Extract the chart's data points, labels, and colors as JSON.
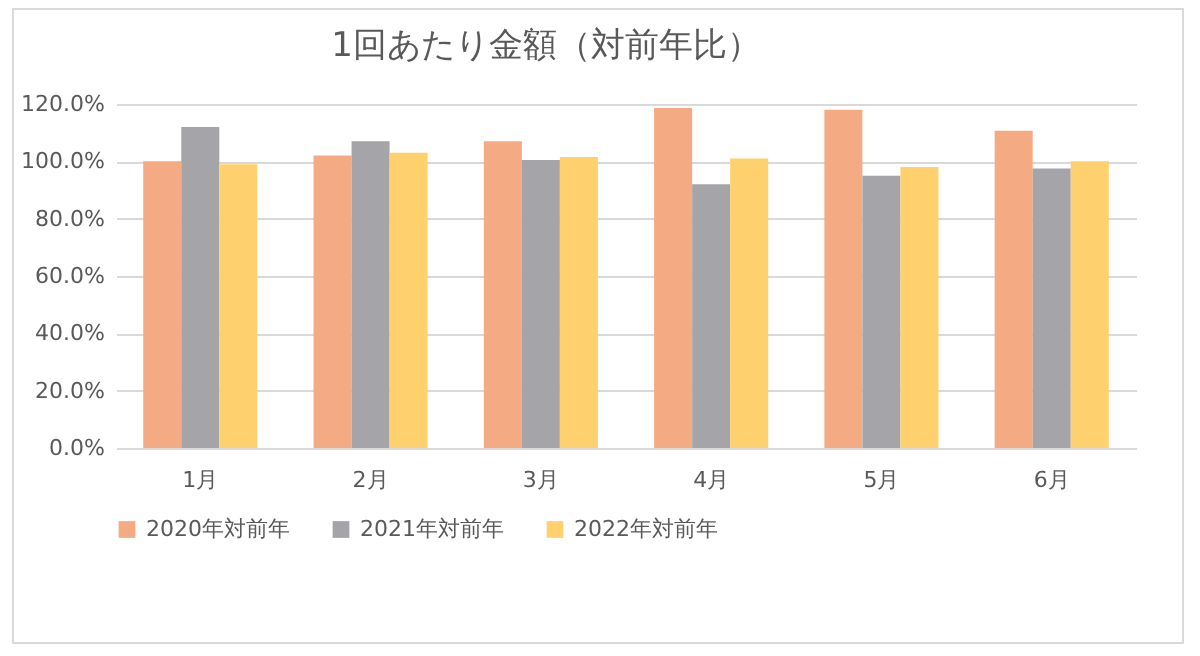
{
  "chart_data": {
    "type": "bar",
    "title": "1回あたり金額（対前年比）",
    "categories": [
      "1月",
      "2月",
      "3月",
      "4月",
      "5月",
      "6月"
    ],
    "series": [
      {
        "name": "2020年対前年",
        "color": "#f4aa82",
        "values": [
          100,
          102,
          107,
          118.6,
          118,
          110.7
        ]
      },
      {
        "name": "2021年対前年",
        "color": "#a5a5a9",
        "values": [
          112,
          107,
          100.5,
          92,
          95,
          97.5
        ]
      },
      {
        "name": "2022年対前年",
        "color": "#ffd16e",
        "values": [
          99,
          103,
          101.5,
          101,
          98,
          100
        ]
      }
    ],
    "ylim": [
      0,
      120
    ],
    "yticks": [
      {
        "value": 0,
        "label": "0.0%"
      },
      {
        "value": 20,
        "label": "20.0%"
      },
      {
        "value": 40,
        "label": "40.0%"
      },
      {
        "value": 60,
        "label": "60.0%"
      },
      {
        "value": 80,
        "label": "80.0%"
      },
      {
        "value": 100,
        "label": "100.0%"
      },
      {
        "value": 120,
        "label": "120.0%"
      }
    ],
    "grid": "y",
    "legend": "bottom"
  }
}
